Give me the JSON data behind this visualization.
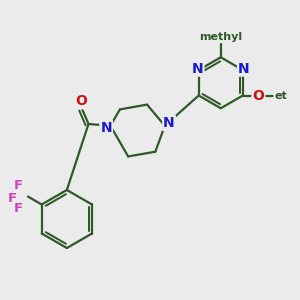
{
  "background_color": "#ebebeb",
  "bond_color": "#2d5a27",
  "N_color": "#1a1acc",
  "O_color": "#cc1111",
  "F_color": "#cc44bb",
  "line_width": 1.6,
  "font_size": 10,
  "fig_size": [
    3.0,
    3.0
  ],
  "dpi": 100,
  "methyl_label": "methyl",
  "ethoxy_O_label": "O",
  "ethyl_label": "ethyl"
}
